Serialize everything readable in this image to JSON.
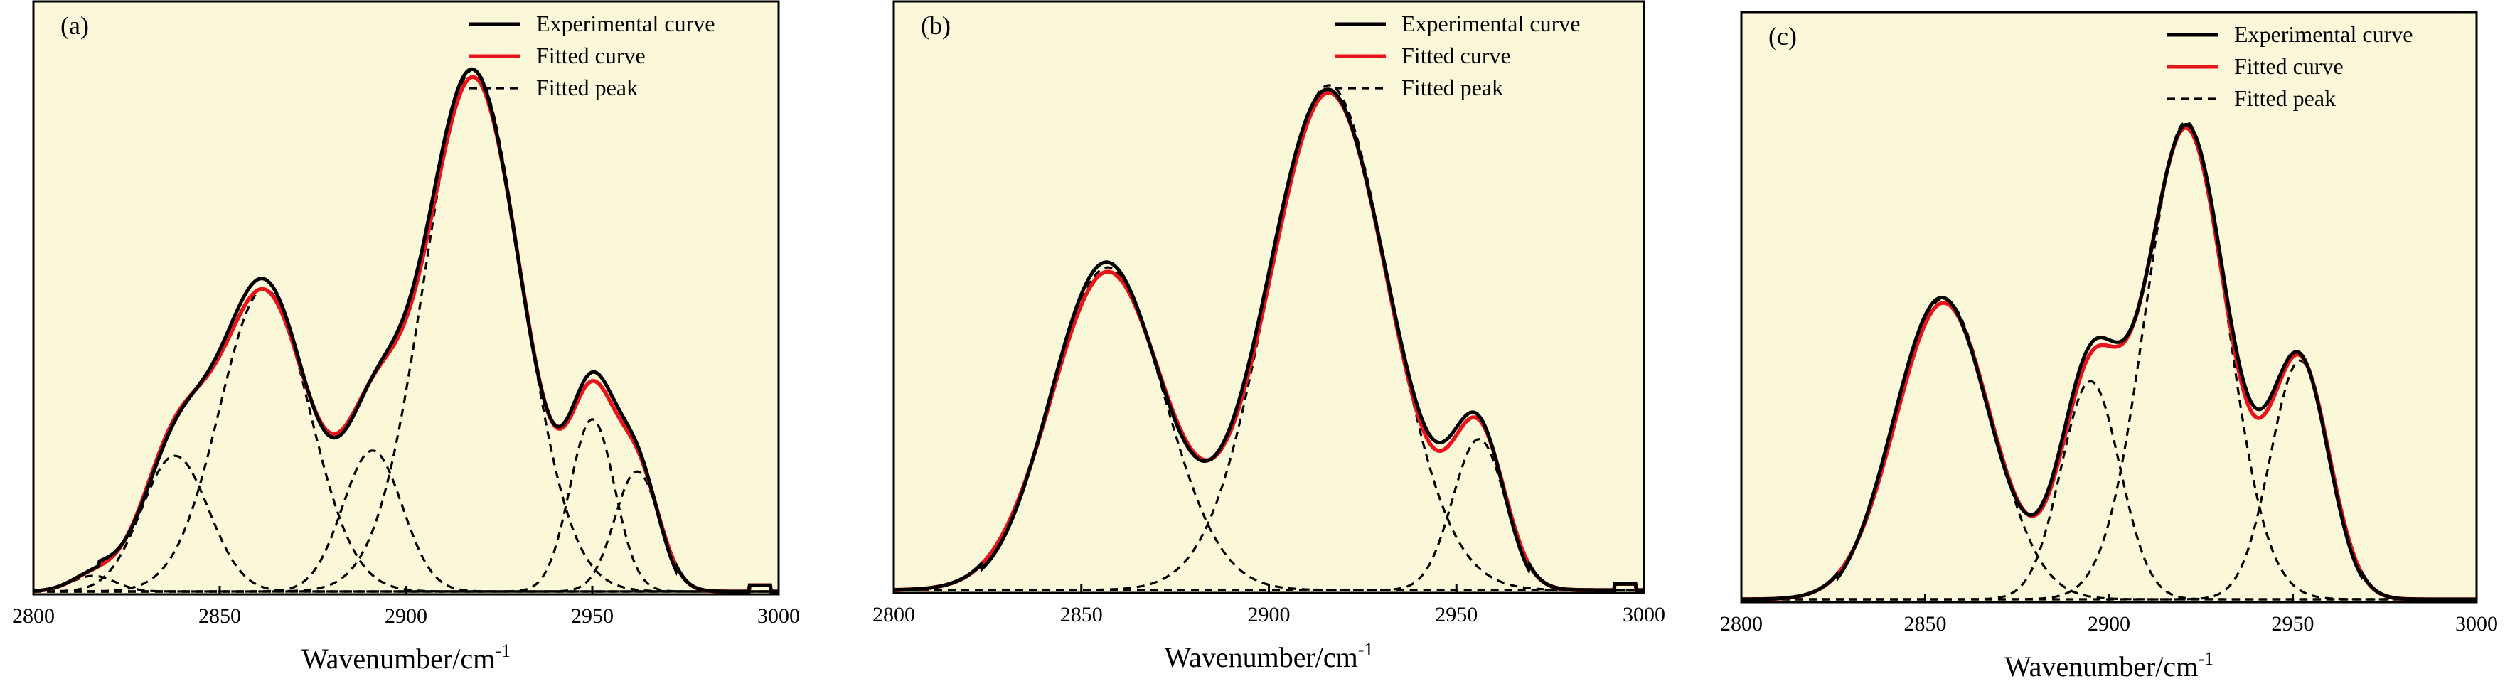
{
  "figure": {
    "panel_count": 3
  },
  "legend": {
    "experimental": "Experimental curve",
    "fitted_curve": "Fitted curve",
    "fitted_peak": "Fitted peak"
  },
  "colors": {
    "plot_background": "#fbf7d9",
    "experimental": "#000000",
    "fitted_curve": "#e8141c",
    "fitted_peak": "#000000"
  },
  "chart_data": [
    {
      "type": "line",
      "panel_label": "(a)",
      "title": "",
      "xlabel": "Wavenumber/cm",
      "xlabel_sup": "-1",
      "ylabel": "",
      "xlim": [
        2800,
        3000
      ],
      "ylim": [
        0,
        1
      ],
      "xticks": [
        2800,
        2850,
        2900,
        2950,
        3000
      ],
      "grid": false,
      "legend_position": "top-right",
      "baseline_step": {
        "x": 2995,
        "height": 0.012,
        "width": 3
      },
      "peaks": [
        {
          "center": 2816,
          "height": 0.03,
          "sigma": 6
        },
        {
          "center": 2838,
          "height": 0.26,
          "sigma": 9
        },
        {
          "center": 2862,
          "height": 0.58,
          "sigma": 12
        },
        {
          "center": 2891,
          "height": 0.27,
          "sigma": 8
        },
        {
          "center": 2918,
          "height": 1.0,
          "sigma": 13
        },
        {
          "center": 2950,
          "height": 0.33,
          "sigma": 6
        },
        {
          "center": 2962,
          "height": 0.23,
          "sigma": 6
        }
      ]
    },
    {
      "type": "line",
      "panel_label": "(b)",
      "title": "",
      "xlabel": "Wavenumber/cm",
      "xlabel_sup": "-1",
      "ylabel": "",
      "xlim": [
        2800,
        3000
      ],
      "ylim": [
        0,
        1
      ],
      "xticks": [
        2800,
        2850,
        2900,
        2950,
        3000
      ],
      "grid": false,
      "legend_position": "top-right",
      "baseline_step": {
        "x": 2995,
        "height": 0.012,
        "width": 3
      },
      "peaks": [
        {
          "center": 2857,
          "height": 0.62,
          "sigma": 15
        },
        {
          "center": 2916,
          "height": 0.97,
          "sigma": 16
        },
        {
          "center": 2956,
          "height": 0.29,
          "sigma": 7
        }
      ]
    },
    {
      "type": "line",
      "panel_label": "(c)",
      "title": "",
      "xlabel": "Wavenumber/cm",
      "xlabel_sup": "-1",
      "ylabel": "",
      "xlim": [
        2800,
        3000
      ],
      "ylim": [
        0,
        1
      ],
      "xticks": [
        2800,
        2850,
        2900,
        2950,
        3000
      ],
      "grid": false,
      "legend_position": "top-right",
      "baseline_step": null,
      "peaks": [
        {
          "center": 2855,
          "height": 0.58,
          "sigma": 13
        },
        {
          "center": 2895,
          "height": 0.42,
          "sigma": 8
        },
        {
          "center": 2921,
          "height": 0.92,
          "sigma": 11
        },
        {
          "center": 2952,
          "height": 0.46,
          "sigma": 8
        }
      ]
    }
  ]
}
